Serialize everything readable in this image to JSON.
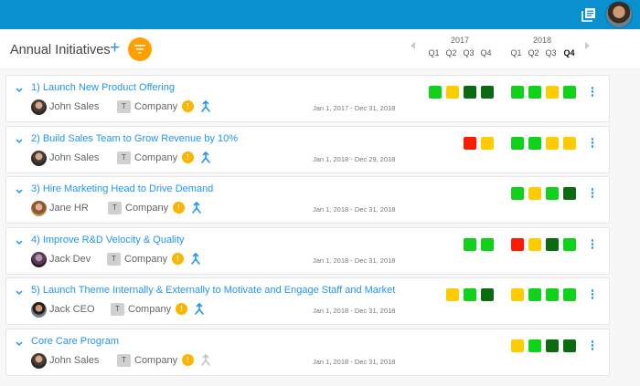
{
  "header": {
    "bg_color": "#0a8fcf",
    "icons": [
      "documents-icon",
      "user-avatar"
    ]
  },
  "toolbar": {
    "title": "Annual Initiatives",
    "add_label": "+",
    "filter_icon": "filter-icon"
  },
  "timeline": {
    "years": [
      "2017",
      "2018"
    ],
    "quarters": [
      "Q1",
      "Q2",
      "Q3",
      "Q4"
    ],
    "current": {
      "year": "2018",
      "quarter": "Q4"
    }
  },
  "status_colors": {
    "green": "#11d21a",
    "yellow": "#ffcc00",
    "darkgreen": "#0b6b12",
    "red": "#ff1a00"
  },
  "initiatives": [
    {
      "title": "1) Launch New Product Offering",
      "owner": "John Sales",
      "type_badge": "T",
      "level": "Company",
      "info_badge": "!",
      "dates": "Jan 1, 2017 - Dec 31, 2018",
      "merge_enabled": true,
      "status_2017": [
        "green",
        "yellow",
        "darkgreen",
        "darkgreen"
      ],
      "status_2018": [
        "green",
        "green",
        "yellow",
        "green"
      ]
    },
    {
      "title": "2) Build Sales Team to Grow Revenue by 10%",
      "owner": "John Sales",
      "type_badge": "T",
      "level": "Company",
      "info_badge": "!",
      "dates": "Jan 1, 2018 - Dec 29, 2018",
      "merge_enabled": true,
      "status_2017": [
        null,
        null,
        "red",
        "yellow"
      ],
      "status_2018": [
        "green",
        "green",
        "yellow",
        "yellow"
      ]
    },
    {
      "title": "3) Hire Marketing Head to Drive Demand",
      "owner": "Jane HR",
      "type_badge": "T",
      "level": "Company",
      "info_badge": "!",
      "dates": "Jan 1, 2018 - Dec 31, 2018",
      "merge_enabled": true,
      "status_2017": [
        null,
        null,
        null,
        null
      ],
      "status_2018": [
        "green",
        "yellow",
        "green",
        "darkgreen"
      ]
    },
    {
      "title": "4) Improve R&D Velocity & Quality",
      "owner": "Jack Dev",
      "type_badge": "T",
      "level": "Company",
      "info_badge": "!",
      "dates": "Jan 1, 2018 - Dec 31, 2018",
      "merge_enabled": true,
      "status_2017": [
        null,
        null,
        "green",
        "green"
      ],
      "status_2018": [
        "red",
        "yellow",
        "darkgreen",
        "green"
      ]
    },
    {
      "title": "5) Launch Theme Internally & Externally to Motivate and Engage Staff and Market",
      "owner": "Jack CEO",
      "type_badge": "T",
      "level": "Company",
      "info_badge": "!",
      "dates": "Jan 1, 2018 - Dec 31, 2018",
      "merge_enabled": true,
      "status_2017": [
        null,
        "yellow",
        "green",
        "darkgreen"
      ],
      "status_2018": [
        "yellow",
        "green",
        "green",
        "green"
      ]
    },
    {
      "title": "Core Care Program",
      "owner": "John Sales",
      "type_badge": "T",
      "level": "Company",
      "info_badge": "!",
      "dates": "Jan 1, 2018 - Dec 31, 2018",
      "merge_enabled": false,
      "status_2017": [
        null,
        null,
        null,
        null
      ],
      "status_2018": [
        "yellow",
        "green",
        "darkgreen",
        "darkgreen"
      ]
    }
  ]
}
